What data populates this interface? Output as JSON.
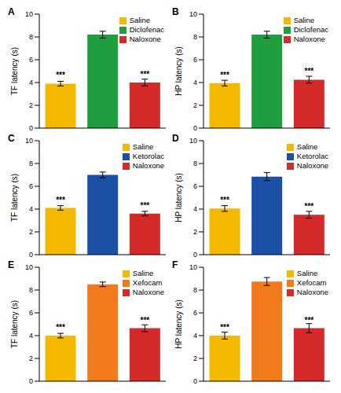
{
  "chart_data": [
    {
      "type": "bar",
      "title": "A",
      "y_label": "TF latency (s)",
      "categories": [
        "Saline",
        "Diclofenac",
        "Naloxone"
      ],
      "values": [
        3.9,
        8.2,
        4.0
      ],
      "errors": [
        0.2,
        0.3,
        0.3
      ],
      "significance": [
        "***",
        null,
        "***"
      ],
      "colors": [
        "#f5b800",
        "#1e9e3e",
        "#d42a2a"
      ],
      "ylim": [
        0,
        10
      ],
      "yticks": [
        0,
        2,
        4,
        6,
        8,
        10
      ],
      "legend": "upper right",
      "tick_labels": "y",
      "grid": false
    },
    {
      "type": "bar",
      "title": "B",
      "y_label": "HP latency (s)",
      "categories": [
        "Saline",
        "Diclofenac",
        "Naloxone"
      ],
      "values": [
        3.95,
        8.2,
        4.25
      ],
      "errors": [
        0.25,
        0.3,
        0.3
      ],
      "significance": [
        "***",
        null,
        "***"
      ],
      "colors": [
        "#f5b800",
        "#1e9e3e",
        "#d42a2a"
      ],
      "ylim": [
        0,
        10
      ],
      "yticks": [
        0,
        2,
        4,
        6,
        8,
        10
      ],
      "legend": "upper right",
      "tick_labels": "y",
      "grid": false
    },
    {
      "type": "bar",
      "title": "C",
      "y_label": "TF latency (s)",
      "categories": [
        "Saline",
        "Ketorolac",
        "Naloxone"
      ],
      "values": [
        4.1,
        7.0,
        3.6
      ],
      "errors": [
        0.2,
        0.25,
        0.2
      ],
      "significance": [
        "***",
        null,
        "***"
      ],
      "colors": [
        "#f5b800",
        "#1c4fa6",
        "#d42a2a"
      ],
      "ylim": [
        0,
        10
      ],
      "yticks": [
        0,
        2,
        4,
        6,
        8,
        10
      ],
      "legend": "upper right",
      "tick_labels": "y",
      "grid": false
    },
    {
      "type": "bar",
      "title": "D",
      "y_label": "HP latency (s)",
      "categories": [
        "Saline",
        "Ketorolac",
        "Naloxone"
      ],
      "values": [
        4.05,
        6.85,
        3.5
      ],
      "errors": [
        0.25,
        0.35,
        0.3
      ],
      "significance": [
        "***",
        null,
        "***"
      ],
      "colors": [
        "#f5b800",
        "#1c4fa6",
        "#d42a2a"
      ],
      "ylim": [
        0,
        10
      ],
      "yticks": [
        0,
        2,
        4,
        6,
        8,
        10
      ],
      "legend": "upper right",
      "tick_labels": "y",
      "grid": false
    },
    {
      "type": "bar",
      "title": "E",
      "y_label": "TF latency (s)",
      "categories": [
        "Saline",
        "Xefocam",
        "Naloxone"
      ],
      "values": [
        4.0,
        8.5,
        4.65
      ],
      "errors": [
        0.2,
        0.2,
        0.3
      ],
      "significance": [
        "***",
        null,
        "***"
      ],
      "colors": [
        "#f5b800",
        "#f07a1c",
        "#d42a2a"
      ],
      "ylim": [
        0,
        10
      ],
      "yticks": [
        0,
        2,
        4,
        6,
        8,
        10
      ],
      "legend": "upper right",
      "tick_labels": "y",
      "grid": false
    },
    {
      "type": "bar",
      "title": "F",
      "y_label": "HP latency (s)",
      "categories": [
        "Saline",
        "Xefocam",
        "Naloxone"
      ],
      "values": [
        4.0,
        8.75,
        4.65
      ],
      "errors": [
        0.3,
        0.35,
        0.4
      ],
      "significance": [
        "***",
        null,
        "***"
      ],
      "colors": [
        "#f5b800",
        "#f07a1c",
        "#d42a2a"
      ],
      "ylim": [
        0,
        10
      ],
      "yticks": [
        0,
        2,
        4,
        6,
        8,
        10
      ],
      "legend": "upper right",
      "tick_labels": "y",
      "grid": false
    }
  ]
}
